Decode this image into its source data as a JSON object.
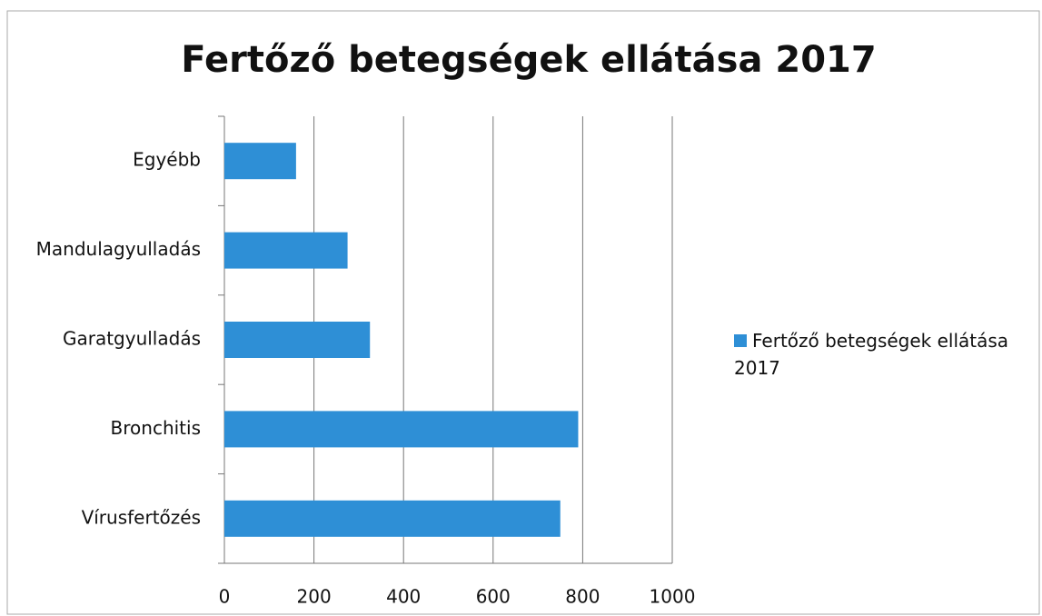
{
  "chart_data": {
    "type": "bar",
    "orientation": "horizontal",
    "title": "Fertőző betegségek ellátása 2017",
    "categories": [
      "Egyébb",
      "Mandulagyulladás",
      "Garatgyulladás",
      "Bronchitis",
      "Vírusfertőzés"
    ],
    "series": [
      {
        "name": "Fertőző betegségek ellátása 2017",
        "color": "#2e8fd6",
        "values": [
          160,
          275,
          325,
          790,
          750
        ]
      }
    ],
    "xlim": [
      0,
      1000
    ],
    "xticks": [
      0,
      200,
      400,
      600,
      800,
      1000
    ],
    "grid": true,
    "legend": "right"
  }
}
